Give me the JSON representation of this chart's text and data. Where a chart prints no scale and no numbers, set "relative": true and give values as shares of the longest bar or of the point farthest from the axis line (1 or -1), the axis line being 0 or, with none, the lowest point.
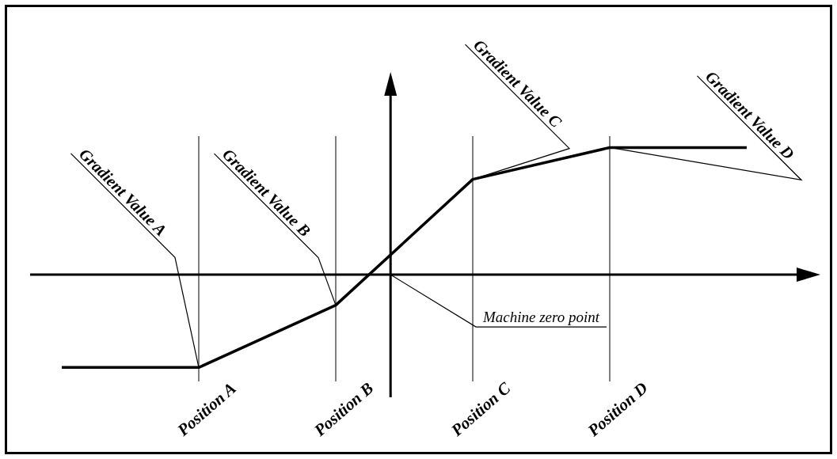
{
  "chart_data": {
    "type": "line",
    "relative": true,
    "categories": [
      null,
      "Position A",
      "Position B",
      "Position C",
      "Position D",
      null
    ],
    "series": [
      {
        "color": "#000000",
        "values": [
          -0.73,
          -0.73,
          -0.24,
          0.75,
          1,
          1
        ]
      }
    ],
    "grid": "x",
    "marker": "none",
    "annotations": [
      {
        "text": "Gradient Value A",
        "x": "Position A",
        "y": -0.73
      },
      {
        "text": "Gradient Value B",
        "x": "Position B",
        "y": -0.24
      },
      {
        "text": "Gradient Value C",
        "x": "Position C",
        "y": 0.75
      },
      {
        "text": "Gradient Value D",
        "x": "Position D",
        "y": 1
      },
      "Machine zero point"
    ]
  }
}
